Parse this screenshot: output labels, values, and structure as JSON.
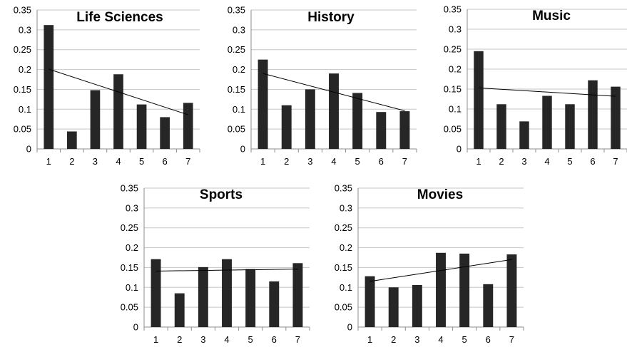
{
  "chart_data": [
    {
      "type": "bar",
      "title": "Life Sciences",
      "categories": [
        "1",
        "2",
        "3",
        "4",
        "5",
        "6",
        "7"
      ],
      "values": [
        0.312,
        0.044,
        0.148,
        0.188,
        0.112,
        0.08,
        0.116
      ],
      "trendline": {
        "start": 0.201,
        "end": 0.086
      },
      "ylim": [
        0,
        0.35
      ],
      "yticks": [
        "0",
        "0.05",
        "0.1",
        "0.15",
        "0.2",
        "0.25",
        "0.3",
        "0.35"
      ],
      "grid": true
    },
    {
      "type": "bar",
      "title": "History",
      "categories": [
        "1",
        "2",
        "3",
        "4",
        "5",
        "6",
        "7"
      ],
      "values": [
        0.225,
        0.11,
        0.15,
        0.19,
        0.141,
        0.093,
        0.095
      ],
      "trendline": {
        "start": 0.19,
        "end": 0.096
      },
      "ylim": [
        0,
        0.35
      ],
      "yticks": [
        "0",
        "0.05",
        "0.1",
        "0.15",
        "0.2",
        "0.25",
        "0.3",
        "0.35"
      ],
      "grid": true
    },
    {
      "type": "bar",
      "title": "Music",
      "categories": [
        "1",
        "2",
        "3",
        "4",
        "5",
        "6",
        "7"
      ],
      "values": [
        0.245,
        0.112,
        0.069,
        0.133,
        0.112,
        0.172,
        0.156
      ],
      "trendline": {
        "start": 0.153,
        "end": 0.132
      },
      "ylim": [
        0,
        0.35
      ],
      "yticks": [
        "0",
        "0.05",
        "0.1",
        "0.15",
        "0.2",
        "0.25",
        "0.3",
        "0.35"
      ],
      "grid": true
    },
    {
      "type": "bar",
      "title": "Sports",
      "categories": [
        "1",
        "2",
        "3",
        "4",
        "5",
        "6",
        "7"
      ],
      "values": [
        0.171,
        0.085,
        0.151,
        0.171,
        0.146,
        0.115,
        0.161
      ],
      "trendline": {
        "start": 0.141,
        "end": 0.146
      },
      "ylim": [
        0,
        0.35
      ],
      "yticks": [
        "0",
        "0.05",
        "0.1",
        "0.15",
        "0.2",
        "0.25",
        "0.3",
        "0.35"
      ],
      "grid": true
    },
    {
      "type": "bar",
      "title": "Movies",
      "categories": [
        "1",
        "2",
        "3",
        "4",
        "5",
        "6",
        "7"
      ],
      "values": [
        0.128,
        0.1,
        0.106,
        0.187,
        0.185,
        0.108,
        0.183
      ],
      "trendline": {
        "start": 0.115,
        "end": 0.17
      },
      "ylim": [
        0,
        0.35
      ],
      "yticks": [
        "0",
        "0.05",
        "0.1",
        "0.15",
        "0.2",
        "0.25",
        "0.3",
        "0.35"
      ],
      "grid": true
    }
  ]
}
